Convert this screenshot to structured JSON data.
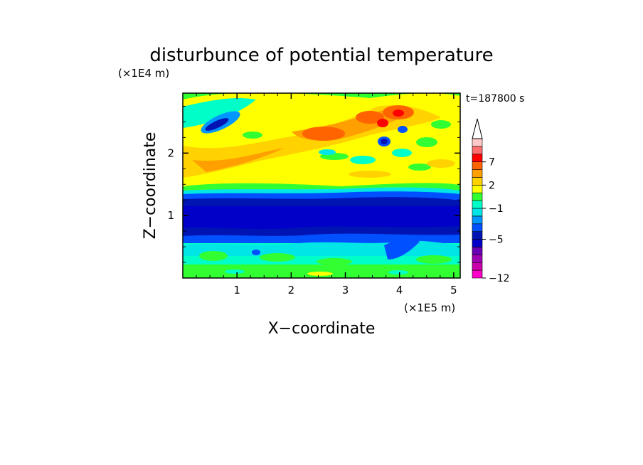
{
  "chart_data": {
    "type": "heatmap",
    "title": "disturbunce of potential temperature",
    "time_label": "t=187800 s",
    "xlabel": "X−coordinate",
    "ylabel": "Z−coordinate",
    "x_unit": "(×1E5 m)",
    "y_unit": "(×1E4 m)",
    "xlim": [
      0,
      5.12
    ],
    "ylim": [
      0,
      2.96
    ],
    "x_ticks": [
      1,
      2,
      3,
      4,
      5
    ],
    "x_tick_labels": [
      "1",
      "2",
      "3",
      "4",
      "5"
    ],
    "y_ticks": [
      1,
      2
    ],
    "y_tick_labels": [
      "1",
      "2"
    ],
    "colorbar": {
      "levels": [
        -12,
        -11,
        -9,
        -7,
        -6,
        -5,
        -4,
        -3,
        -2,
        -1,
        0,
        1,
        2,
        3,
        5,
        7,
        8,
        10
      ],
      "tick_labels": [
        "7",
        "2",
        "−1",
        "−5",
        "−12"
      ],
      "tick_values": [
        7,
        2,
        -1,
        -5,
        -12
      ],
      "colors": [
        "#ff00c8",
        "#cc00aa",
        "#a000b4",
        "#6a00b4",
        "#0000c8",
        "#0014b4",
        "#0050ff",
        "#0096ff",
        "#00e6e6",
        "#00ffc8",
        "#32ff32",
        "#ffff00",
        "#ffd200",
        "#ffa000",
        "#ff6400",
        "#ff0000",
        "#ff6e6e",
        "#ffc8c8"
      ],
      "extend": "max"
    },
    "field_description": "cross-section of the field over x and height"
  }
}
